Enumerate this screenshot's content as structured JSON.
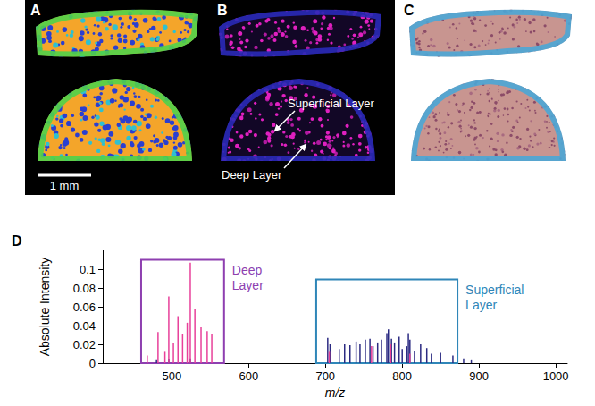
{
  "panels": [
    {
      "label": "A",
      "scale_bar": "1 mm"
    },
    {
      "label": "B",
      "annotations": [
        "Superficial Layer",
        "Deep Layer"
      ]
    },
    {
      "label": "C"
    }
  ],
  "chart_data": {
    "type": "bar",
    "title": "D",
    "x_label": "m/z",
    "y_label": "Absolute Intensity",
    "xlim": [
      410,
      1015
    ],
    "xticks": [
      500,
      600,
      700,
      800,
      900,
      1000
    ],
    "ylim": [
      0,
      0.12
    ],
    "yticks": [
      0,
      0.02,
      0.04,
      0.06,
      0.08,
      0.1
    ],
    "grid": false,
    "series": [
      {
        "color": "#2b2a82",
        "x": [
          480,
          496,
          524,
          703,
          706,
          718,
          725,
          732,
          740,
          745,
          752,
          758,
          762,
          768,
          773,
          780,
          782,
          786,
          790,
          796,
          800,
          806,
          808,
          810,
          816,
          824,
          832,
          838,
          850,
          866,
          880,
          890
        ],
        "values": [
          0.003,
          0.004,
          0.005,
          0.027,
          0.02,
          0.015,
          0.02,
          0.019,
          0.023,
          0.02,
          0.025,
          0.026,
          0.018,
          0.022,
          0.025,
          0.032,
          0.036,
          0.026,
          0.022,
          0.028,
          0.015,
          0.018,
          0.032,
          0.025,
          0.013,
          0.02,
          0.016,
          0.01,
          0.011,
          0.008,
          0.005,
          0.003
        ]
      },
      {
        "color": "#e8409a",
        "x": [
          468,
          482,
          491,
          496,
          502,
          508,
          514,
          520,
          524,
          530,
          538,
          546,
          552,
          705,
          760,
          785,
          810
        ],
        "values": [
          0.008,
          0.033,
          0.012,
          0.071,
          0.022,
          0.05,
          0.031,
          0.043,
          0.107,
          0.058,
          0.038,
          0.034,
          0.031,
          0.012,
          0.018,
          0.02,
          0.01
        ]
      }
    ],
    "regions": [
      {
        "label": "Deep Layer",
        "color": "#8e3fb0",
        "x": [
          460,
          568
        ],
        "y": [
          0,
          0.11
        ]
      },
      {
        "label": "Superficial Layer",
        "color": "#2f86b8",
        "x": [
          688,
          872
        ],
        "y": [
          0,
          0.089
        ]
      }
    ]
  }
}
